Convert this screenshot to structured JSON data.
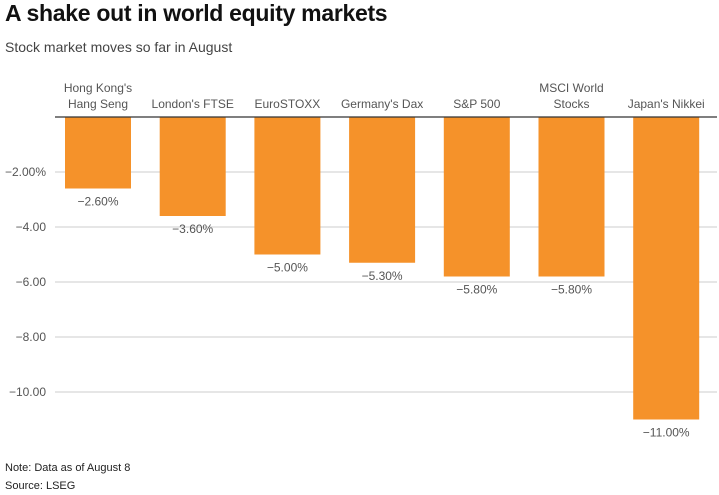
{
  "title": "A shake out in world equity markets",
  "subtitle": "Stock market moves so far in August",
  "footer": {
    "note": "Note: Data as of August 8",
    "source": "Source: LSEG"
  },
  "colors": {
    "bar": "#f5922a",
    "grid": "#cccccc",
    "axis": "#333333",
    "text": "#555555"
  },
  "chart_data": {
    "type": "bar",
    "categories": [
      [
        "Hong Kong's",
        "Hang Seng"
      ],
      [
        "London's FTSE"
      ],
      [
        "EuroSTOXX"
      ],
      [
        "Germany's Dax"
      ],
      [
        "S&P 500"
      ],
      [
        "MSCI World",
        "Stocks"
      ],
      [
        "Japan's Nikkei"
      ]
    ],
    "values": [
      -2.6,
      -3.6,
      -5.0,
      -5.3,
      -5.8,
      -5.8,
      -11.0
    ],
    "value_labels": [
      "−2.60%",
      "−3.60%",
      "−5.00%",
      "−5.30%",
      "−5.80%",
      "−5.80%",
      "−11.00%"
    ],
    "yticks": [
      -2,
      -4,
      -6,
      -8,
      -10
    ],
    "ytick_labels": [
      "−2.00%",
      "−4.00",
      "−6.00",
      "−8.00",
      "−10.00"
    ],
    "ylim": [
      -11.6,
      0
    ],
    "grid": true,
    "xlabel": "",
    "ylabel": ""
  }
}
